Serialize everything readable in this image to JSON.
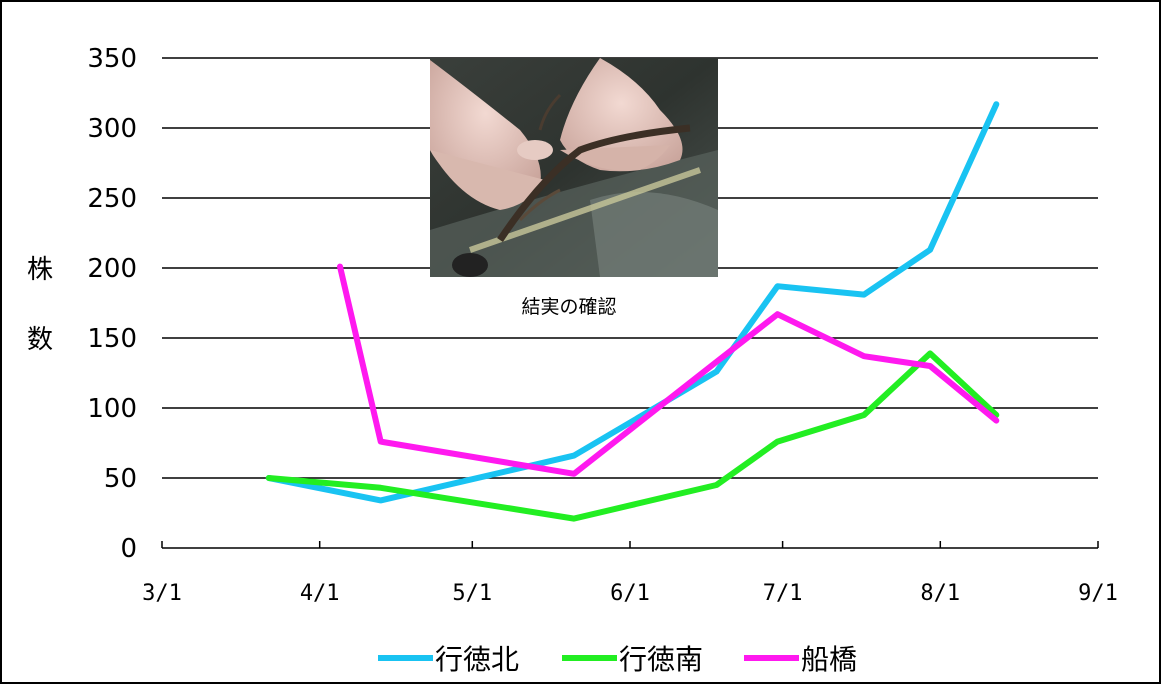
{
  "chart_data": {
    "type": "line",
    "title": "",
    "xlabel": "",
    "ylabel": "株 数",
    "ylim": [
      0,
      350
    ],
    "yticks": [
      0,
      50,
      100,
      150,
      200,
      250,
      300,
      350
    ],
    "xticks": [
      "3/1",
      "4/1",
      "5/1",
      "6/1",
      "7/1",
      "8/1",
      "9/1"
    ],
    "xlim": [
      "3/1",
      "9/1"
    ],
    "grid": "horizontal",
    "legend": "bottom",
    "photo_caption": "結実の確認",
    "series": [
      {
        "name": "行徳北",
        "color": "#19c3f2",
        "points": [
          [
            "3/22",
            50
          ],
          [
            "4/13",
            34
          ],
          [
            "5/21",
            66
          ],
          [
            "6/18",
            126
          ],
          [
            "6/30",
            187
          ],
          [
            "7/17",
            181
          ],
          [
            "7/30",
            213
          ],
          [
            "8/12",
            317
          ]
        ]
      },
      {
        "name": "行徳南",
        "color": "#22ee22",
        "points": [
          [
            "3/22",
            50
          ],
          [
            "4/13",
            43
          ],
          [
            "5/21",
            21
          ],
          [
            "6/18",
            45
          ],
          [
            "6/30",
            76
          ],
          [
            "7/17",
            95
          ],
          [
            "7/30",
            139
          ],
          [
            "8/12",
            95
          ]
        ]
      },
      {
        "name": "船橋",
        "color": "#ff19ef",
        "points": [
          [
            "4/5",
            201
          ],
          [
            "4/13",
            76
          ],
          [
            "5/21",
            53
          ],
          [
            "6/18",
            133
          ],
          [
            "6/30",
            167
          ],
          [
            "7/17",
            137
          ],
          [
            "7/30",
            130
          ],
          [
            "8/12",
            91
          ]
        ]
      }
    ]
  }
}
